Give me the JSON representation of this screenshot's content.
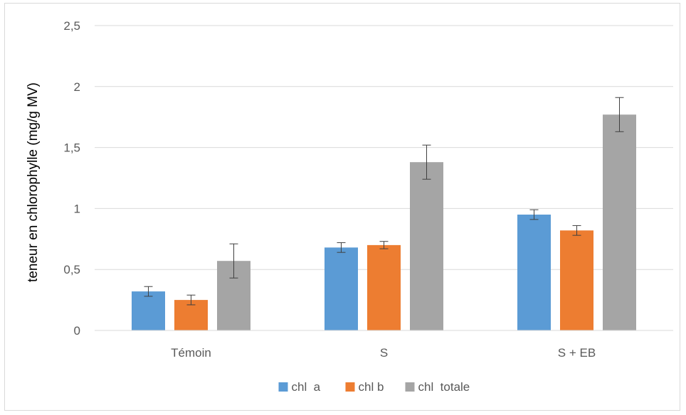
{
  "chart_data": {
    "type": "bar",
    "title": "",
    "ylabel": "teneur en chlorophylle (mg/g MV)",
    "xlabel": "",
    "ylim": [
      0,
      2.5
    ],
    "yticks": [
      0,
      0.5,
      1,
      1.5,
      2,
      2.5
    ],
    "ytick_labels": [
      "0",
      "0,5",
      "1",
      "1,5",
      "2",
      "2,5"
    ],
    "grid": "horizontal",
    "legend_position": "bottom",
    "categories": [
      "Témoin",
      "S",
      "S + EB"
    ],
    "series": [
      {
        "name": "chl  a",
        "color": "#5b9bd5",
        "values": [
          0.32,
          0.68,
          0.95
        ],
        "errors": [
          0.04,
          0.04,
          0.04
        ]
      },
      {
        "name": "chl b",
        "color": "#ed7d31",
        "values": [
          0.25,
          0.7,
          0.82
        ],
        "errors": [
          0.04,
          0.03,
          0.04
        ]
      },
      {
        "name": "chl  totale",
        "color": "#a5a5a5",
        "values": [
          0.57,
          1.38,
          1.77
        ],
        "errors": [
          0.14,
          0.14,
          0.14
        ]
      }
    ]
  }
}
